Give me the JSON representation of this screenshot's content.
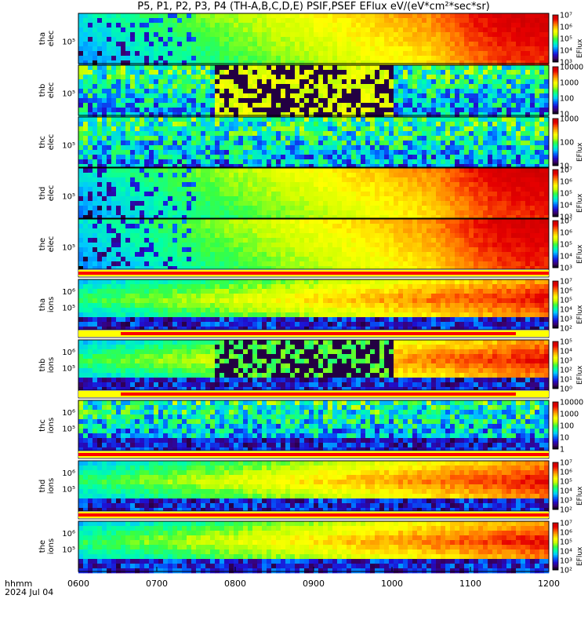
{
  "title": "P5, P1, P2, P3, P4 (TH-A,B,C,D,E) PSIF,PSEF EFlux eV/(eV*cm²*sec*sr)",
  "time_label": "hhmm",
  "date_label": "2024 Jul 04",
  "chart_data": {
    "type": "heatmap",
    "title": "P5, P1, P2, P3, P4 (TH-A,B,C,D,E) PSIF,PSEF EFlux eV/(eV*cm²*sec*sr)",
    "x_ticks": [
      "0600",
      "0700",
      "0800",
      "0900",
      "1000",
      "1100",
      "1200"
    ],
    "xlim": [
      "0600",
      "1200"
    ],
    "panels": [
      {
        "label": [
          "tha",
          "elec"
        ],
        "ytick": "10⁵",
        "colorbar_ticks": [
          "10³",
          "10⁴",
          "10⁵",
          "10⁶",
          "10⁷"
        ],
        "colorbar_label": "EFlux",
        "clim_log10": [
          3,
          7
        ]
      },
      {
        "label": [
          "thb",
          "elec"
        ],
        "ytick": "10⁵",
        "colorbar_ticks": [
          "10",
          "100",
          "1000",
          "10000"
        ],
        "colorbar_label": "",
        "clim_log10": [
          1,
          4
        ]
      },
      {
        "label": [
          "thc",
          "elec"
        ],
        "ytick": "10⁵",
        "colorbar_ticks": [
          "10",
          "100",
          "1000"
        ],
        "colorbar_label": "EFlux",
        "clim_log10": [
          1,
          3
        ]
      },
      {
        "label": [
          "thd",
          "elec"
        ],
        "ytick": "10⁵",
        "colorbar_ticks": [
          "10³",
          "10⁴",
          "10⁵",
          "10⁶",
          "10⁷"
        ],
        "colorbar_label": "EFlux",
        "clim_log10": [
          3,
          7
        ]
      },
      {
        "label": [
          "the",
          "elec"
        ],
        "ytick": "10⁵",
        "colorbar_ticks": [
          "10³",
          "10⁴",
          "10⁵",
          "10⁶",
          "10⁷"
        ],
        "colorbar_label": "EFlux",
        "clim_log10": [
          3,
          7
        ]
      },
      {
        "label": [
          "tha",
          "ions"
        ],
        "ytick": "10⁵",
        "ytick_top": "10⁶",
        "colorbar_ticks": [
          "10²",
          "10³",
          "10⁴",
          "10⁵",
          "10⁶",
          "10⁷"
        ],
        "colorbar_label": "EFlux",
        "clim_log10": [
          2,
          7
        ]
      },
      {
        "label": [
          "thb",
          "ions"
        ],
        "ytick": "10⁵",
        "ytick_top": "10⁶",
        "colorbar_ticks": [
          "10⁰",
          "10¹",
          "10²",
          "10³",
          "10⁴",
          "10⁵"
        ],
        "colorbar_label": "EFlux",
        "clim_log10": [
          0,
          5
        ]
      },
      {
        "label": [
          "thc",
          "ions"
        ],
        "ytick": "10⁵",
        "ytick_top": "10⁶",
        "colorbar_ticks": [
          "1",
          "10",
          "100",
          "1000",
          "10000"
        ],
        "colorbar_label": "",
        "clim_log10": [
          0,
          4
        ]
      },
      {
        "label": [
          "thd",
          "ions"
        ],
        "ytick": "10⁵",
        "ytick_top": "10⁶",
        "colorbar_ticks": [
          "10²",
          "10³",
          "10⁴",
          "10⁵",
          "10⁶",
          "10⁷"
        ],
        "colorbar_label": "EFlux",
        "clim_log10": [
          2,
          7
        ]
      },
      {
        "label": [
          "the",
          "ions"
        ],
        "ytick": "10⁵",
        "ytick_top": "10⁶",
        "colorbar_ticks": [
          "10²",
          "10³",
          "10⁴",
          "10⁵",
          "10⁶",
          "10⁷"
        ],
        "colorbar_label": "EFlux",
        "clim_log10": [
          2,
          7
        ]
      }
    ]
  },
  "colors": {
    "indicator_red": "#ff0000",
    "indicator_yellow": "#ffff00",
    "colormap": [
      "#000000",
      "#3a006e",
      "#1e0fd2",
      "#0060ff",
      "#00c8ff",
      "#00ffaa",
      "#3cff3c",
      "#c8ff00",
      "#ffff00",
      "#ffb400",
      "#ff5a00",
      "#e60000",
      "#c80000"
    ]
  }
}
